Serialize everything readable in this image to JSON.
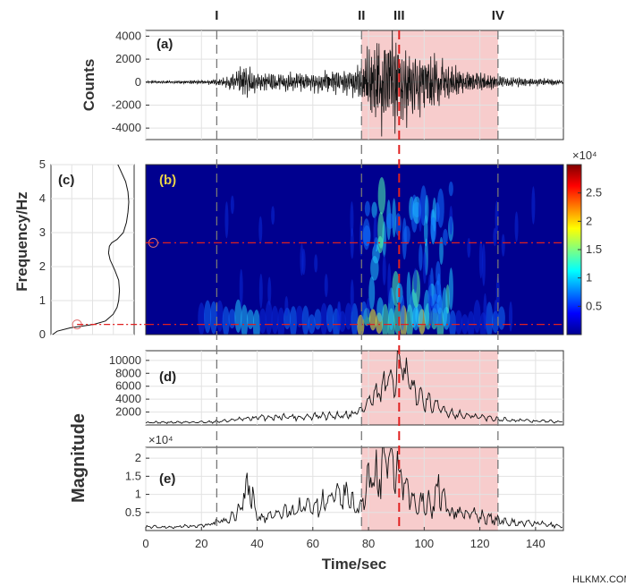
{
  "phases": [
    {
      "label": "I",
      "t": 25.5
    },
    {
      "label": "II",
      "t": 77.5
    },
    {
      "label": "III",
      "t": 91
    },
    {
      "label": "IV",
      "t": 126.5
    }
  ],
  "shade": {
    "start": 77.5,
    "end": 126.5,
    "color": "#f7cccc"
  },
  "colors": {
    "dashed": "#777777",
    "red_dash": "#e02020",
    "trace": "#111111"
  },
  "watermark": "HLKMX.COM",
  "chart_data": [
    {
      "id": "a",
      "type": "line",
      "panel_label": "(a)",
      "ylabel": "Counts",
      "xlim": [
        0,
        150
      ],
      "ylim": [
        -5000,
        4500
      ],
      "yticks": [
        "4000",
        "2000",
        "0",
        "-2000",
        "-4000"
      ],
      "ytick_values": [
        4000,
        2000,
        0,
        -2000,
        -4000
      ],
      "envelope": {
        "t": [
          0,
          20,
          25,
          28,
          30,
          33,
          36,
          38,
          40,
          45,
          50,
          55,
          60,
          65,
          70,
          75,
          77,
          80,
          83,
          86,
          88,
          90,
          91,
          93,
          96,
          100,
          104,
          108,
          112,
          117,
          122,
          127,
          132,
          138,
          144,
          150
        ],
        "amp": [
          100,
          150,
          250,
          400,
          600,
          1000,
          1800,
          1300,
          700,
          700,
          800,
          800,
          900,
          1000,
          1100,
          1200,
          1500,
          3000,
          3800,
          4200,
          4000,
          4300,
          4500,
          3600,
          3200,
          2800,
          2600,
          1600,
          1200,
          1000,
          800,
          600,
          450,
          350,
          300,
          250
        ]
      }
    },
    {
      "id": "b",
      "type": "heatmap",
      "panel_label": "(b)",
      "xlim": [
        0,
        150
      ],
      "ylim": [
        0,
        5
      ],
      "colorbar": {
        "ticks": [
          "2.5",
          "2",
          "1.5",
          "1",
          "0.5"
        ],
        "tick_values": [
          2.5,
          2,
          1.5,
          1,
          0.5
        ],
        "max": 3,
        "multiplier": "×10⁴"
      },
      "hlines": [
        2.7,
        0.3
      ]
    },
    {
      "id": "c",
      "type": "line",
      "panel_label": "(c)",
      "ylabel": "Frequency/Hz",
      "ylim": [
        0,
        5
      ],
      "yticks": [
        "5",
        "4",
        "3",
        "2",
        "1",
        "0"
      ],
      "ytick_values": [
        5,
        4,
        3,
        2,
        1,
        0
      ],
      "profile_freq": [
        0,
        0.1,
        0.2,
        0.3,
        0.4,
        0.6,
        0.8,
        1.0,
        1.3,
        1.6,
        1.9,
        2.2,
        2.4,
        2.6,
        2.7,
        2.8,
        3.0,
        3.3,
        3.6,
        3.9,
        4.2,
        4.5,
        4.8,
        5.0
      ],
      "profile_mag": [
        0.02,
        0.08,
        0.25,
        0.55,
        0.7,
        0.8,
        0.85,
        0.87,
        0.88,
        0.87,
        0.82,
        0.76,
        0.74,
        0.75,
        0.78,
        0.85,
        0.93,
        0.97,
        0.99,
        1.0,
        0.99,
        0.96,
        0.9,
        0.86
      ],
      "markers": [
        {
          "f": 2.7,
          "m": 0.74
        },
        {
          "f": 0.3,
          "m": 0.45
        }
      ]
    },
    {
      "id": "d",
      "type": "line",
      "panel_label": "(d)",
      "xlim": [
        0,
        150
      ],
      "ylim": [
        0,
        11500
      ],
      "yticks": [
        "10000",
        "8000",
        "6000",
        "4000",
        "2000"
      ],
      "ytick_values": [
        10000,
        8000,
        6000,
        4000,
        2000
      ],
      "x": [
        0,
        10,
        20,
        25,
        30,
        35,
        40,
        45,
        50,
        55,
        60,
        65,
        70,
        75,
        78,
        80,
        83,
        85,
        87,
        89,
        90,
        91,
        92,
        93,
        95,
        98,
        100,
        103,
        106,
        110,
        115,
        120,
        125,
        130,
        135,
        140,
        145,
        150
      ],
      "y": [
        400,
        400,
        450,
        500,
        700,
        900,
        1100,
        1200,
        1300,
        1200,
        1300,
        1400,
        1500,
        1800,
        2500,
        3500,
        4500,
        5500,
        6500,
        7500,
        8500,
        11000,
        9000,
        7500,
        6000,
        4500,
        4000,
        3000,
        2500,
        1800,
        1400,
        1200,
        1000,
        800,
        700,
        600,
        550,
        500
      ]
    },
    {
      "id": "e",
      "type": "line",
      "panel_label": "(e)",
      "multiplier": "×10⁴",
      "xlim": [
        0,
        150
      ],
      "ylim": [
        0,
        2.3
      ],
      "xlabel": "Time/sec",
      "xticks": [
        "0",
        "20",
        "40",
        "60",
        "80",
        "100",
        "120",
        "140"
      ],
      "xtick_values": [
        0,
        20,
        40,
        60,
        80,
        100,
        120,
        140
      ],
      "yticks": [
        "2",
        "1.5",
        "1",
        "0.5"
      ],
      "ytick_values": [
        2,
        1.5,
        1,
        0.5
      ],
      "x": [
        0,
        10,
        20,
        25,
        30,
        33,
        35,
        37,
        39,
        41,
        45,
        50,
        55,
        60,
        65,
        70,
        73,
        75,
        78,
        80,
        82,
        84,
        86,
        88,
        90,
        92,
        94,
        96,
        98,
        100,
        103,
        105,
        108,
        110,
        115,
        120,
        125,
        130,
        135,
        140,
        145,
        150
      ],
      "y": [
        0.1,
        0.1,
        0.15,
        0.2,
        0.3,
        0.5,
        0.9,
        1.3,
        0.7,
        0.3,
        0.4,
        0.5,
        0.6,
        0.7,
        0.8,
        0.9,
        0.95,
        0.6,
        0.8,
        1.3,
        1.6,
        1.4,
        2.1,
        1.5,
        1.8,
        1.3,
        1.0,
        0.8,
        0.6,
        0.9,
        0.6,
        1.3,
        0.6,
        0.5,
        0.5,
        0.4,
        0.3,
        0.25,
        0.2,
        0.2,
        0.15,
        0.12
      ]
    }
  ],
  "shared_ylabel": "Magnitude"
}
